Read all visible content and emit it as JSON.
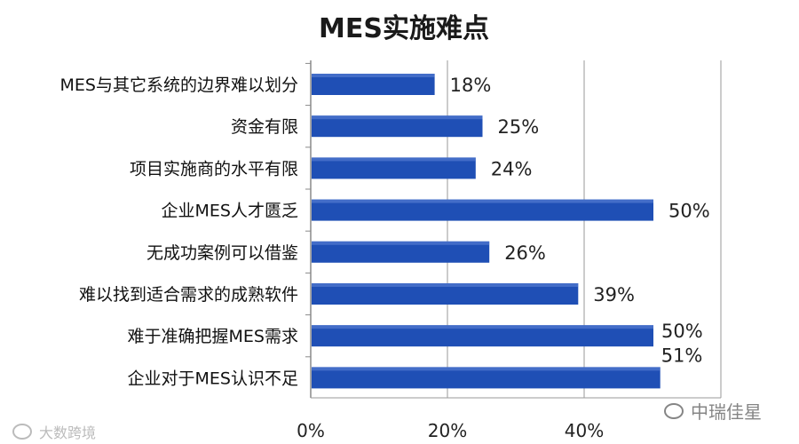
{
  "chart_data": {
    "type": "bar",
    "orientation": "horizontal",
    "title": "MES实施难点",
    "categories": [
      "MES与其它系统的边界难以划分",
      "资金有限",
      "项目实施商的水平有限",
      "企业MES人才匮乏",
      "无成功案例可以借鉴",
      "难以找到适合需求的成熟软件",
      "难于准确把握MES需求",
      "企业对于MES认识不足"
    ],
    "values": [
      18,
      25,
      24,
      50,
      26,
      39,
      50,
      51
    ],
    "value_labels": [
      "18%",
      "25%",
      "24%",
      "50%",
      "26%",
      "39%",
      "50%",
      "51%"
    ],
    "x_ticks": [
      "0%",
      "20%",
      "40%"
    ],
    "xlim": [
      0,
      60
    ],
    "grid": true,
    "bar_color": "#1f4fb5"
  },
  "watermarks": {
    "left": "大数跨境",
    "right": "中瑞佳星"
  }
}
